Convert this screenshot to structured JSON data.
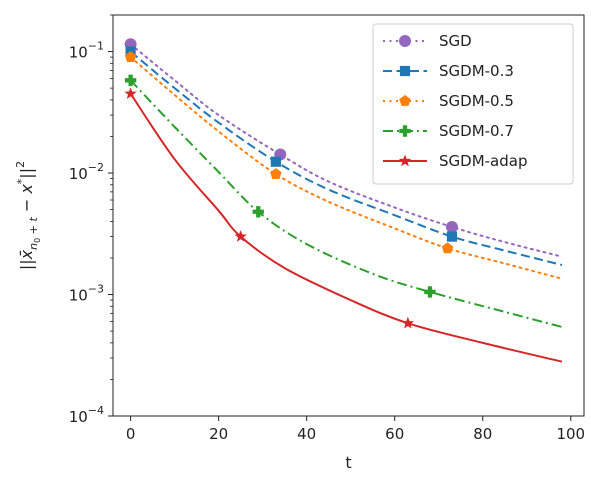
{
  "chart_data": {
    "type": "line",
    "xlabel": "t",
    "ylabel": "||x̄_{n0+t} − x*||²",
    "ylabel_parts": {
      "open": "||",
      "xbar": "x̄",
      "sub": "n",
      "subsub": "0",
      "subplus": " + t",
      "minus": " − ",
      "x": "x",
      "star": "*",
      "close": "||",
      "sup": "2"
    },
    "xlim": [
      -4,
      103
    ],
    "ylim": [
      0.0001,
      0.2
    ],
    "yscale": "log",
    "grid": false,
    "legend_position": "top-right",
    "x_ticks": [
      0,
      20,
      40,
      60,
      80,
      100
    ],
    "x_tick_labels": [
      "0",
      "20",
      "40",
      "60",
      "80",
      "100"
    ],
    "y_ticks": [
      {
        "value": 0.1,
        "base": "10",
        "exp": "−1"
      },
      {
        "value": 0.01,
        "base": "10",
        "exp": "−2"
      },
      {
        "value": 0.001,
        "base": "10",
        "exp": "−3"
      },
      {
        "value": 0.0001,
        "base": "10",
        "exp": "−4"
      }
    ],
    "series": [
      {
        "name": "SGD",
        "color": "#9467bd",
        "dash": "dotted",
        "marker": "circle",
        "x": [
          0,
          10,
          20,
          34,
          45,
          60,
          73,
          85,
          98
        ],
        "y": [
          0.115,
          0.058,
          0.03,
          0.0142,
          0.0085,
          0.0052,
          0.0036,
          0.0027,
          0.00205
        ],
        "markers_x": [
          0,
          34,
          73
        ],
        "markers_y": [
          0.115,
          0.0142,
          0.0036
        ]
      },
      {
        "name": "SGDM-0.3",
        "color": "#1f77b4",
        "dash": "dashed",
        "marker": "square",
        "x": [
          0,
          10,
          20,
          33,
          45,
          60,
          73,
          85,
          98
        ],
        "y": [
          0.1,
          0.05,
          0.026,
          0.0124,
          0.0073,
          0.0045,
          0.003,
          0.0023,
          0.00175
        ],
        "markers_x": [
          0,
          33,
          73
        ],
        "markers_y": [
          0.1,
          0.0124,
          0.003
        ]
      },
      {
        "name": "SGDM-0.5",
        "color": "#ff7f0e",
        "dash": "dotted",
        "marker": "pentagon",
        "x": [
          0,
          10,
          20,
          33,
          45,
          60,
          72,
          85,
          98
        ],
        "y": [
          0.09,
          0.044,
          0.022,
          0.0098,
          0.0058,
          0.0035,
          0.0024,
          0.0018,
          0.00135
        ],
        "markers_x": [
          0,
          33,
          72
        ],
        "markers_y": [
          0.09,
          0.0098,
          0.0024
        ]
      },
      {
        "name": "SGDM-0.7",
        "color": "#2ca02c",
        "dash": "dashdot",
        "marker": "plus",
        "x": [
          0,
          10,
          20,
          29,
          40,
          55,
          68,
          85,
          98
        ],
        "y": [
          0.058,
          0.024,
          0.0102,
          0.0048,
          0.0026,
          0.00148,
          0.00105,
          0.00072,
          0.00054
        ],
        "markers_x": [
          0,
          29,
          68
        ],
        "markers_y": [
          0.058,
          0.0048,
          0.00105
        ]
      },
      {
        "name": "SGDM-adap",
        "color": "#d62728",
        "dash": "solid",
        "marker": "star",
        "x": [
          0,
          10,
          20,
          25,
          35,
          50,
          63,
          80,
          98
        ],
        "y": [
          0.045,
          0.013,
          0.0049,
          0.003,
          0.00165,
          0.0009,
          0.00058,
          0.0004,
          0.00028
        ],
        "markers_x": [
          0,
          25,
          63
        ],
        "markers_y": [
          0.045,
          0.003,
          0.00058
        ]
      }
    ]
  }
}
